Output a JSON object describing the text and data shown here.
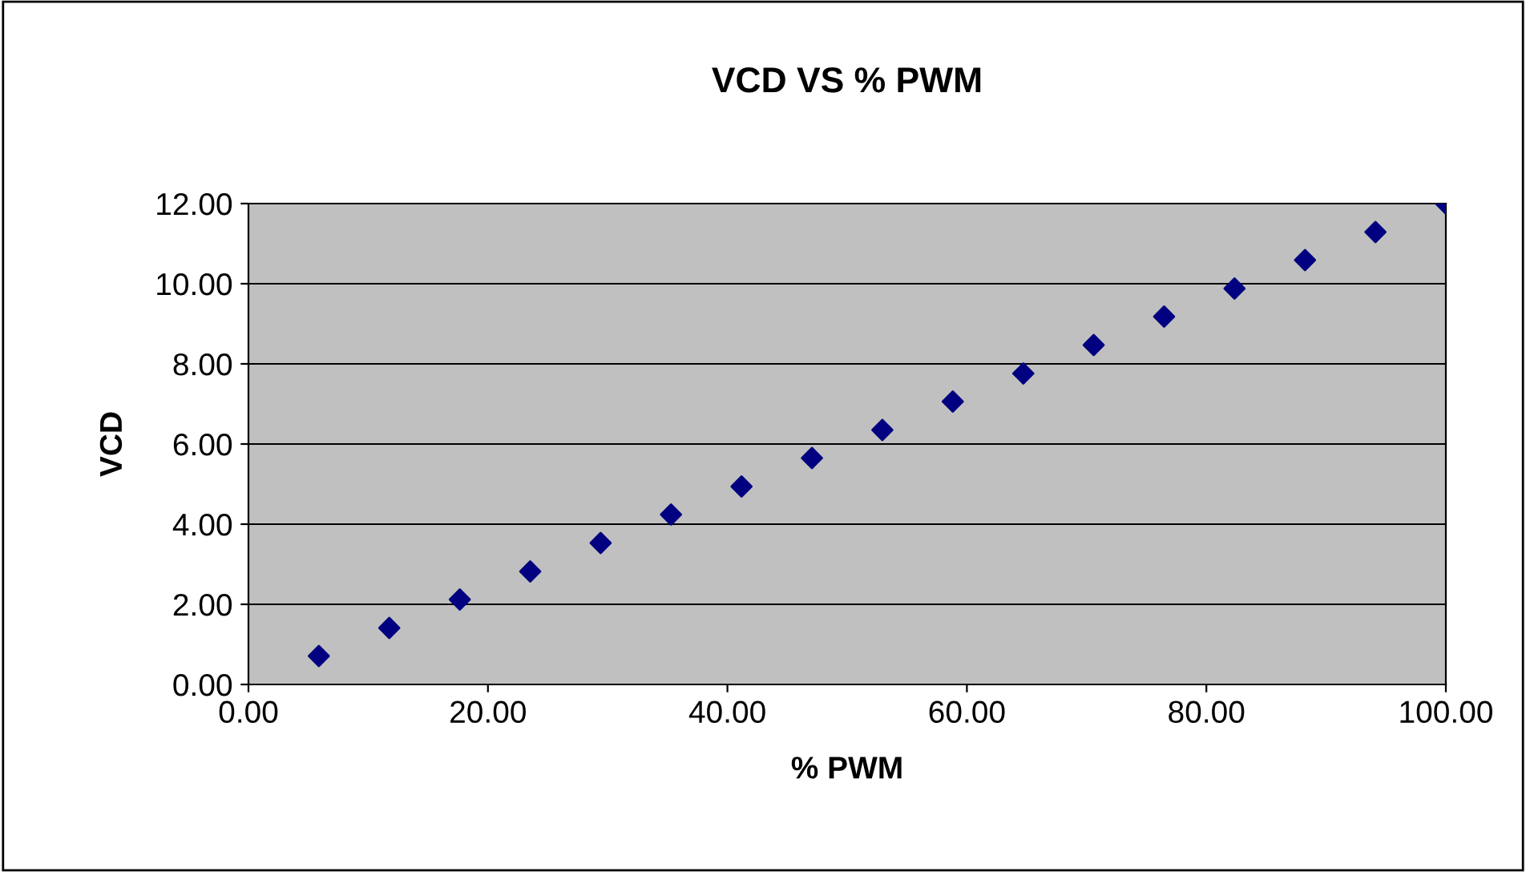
{
  "chart_data": {
    "type": "scatter",
    "title": "VCD VS % PWM",
    "xlabel": "% PWM",
    "ylabel": "VCD",
    "x": [
      5.88,
      11.76,
      17.65,
      23.53,
      29.41,
      35.29,
      41.18,
      47.06,
      52.94,
      58.82,
      64.71,
      70.59,
      76.47,
      82.35,
      88.24,
      94.12,
      100.0
    ],
    "series": [
      {
        "color": "#000080",
        "values": [
          0.71,
          1.41,
          2.12,
          2.82,
          3.53,
          4.24,
          4.94,
          5.65,
          6.35,
          7.06,
          7.76,
          8.47,
          9.18,
          9.88,
          10.59,
          11.29,
          12.0
        ]
      }
    ],
    "marker": "diamond",
    "grid": "y",
    "legend": false,
    "xlim": [
      0,
      100
    ],
    "xticks": [
      {
        "value": 0,
        "label": "0.00"
      },
      {
        "value": 20,
        "label": "20.00"
      },
      {
        "value": 40,
        "label": "40.00"
      },
      {
        "value": 60,
        "label": "60.00"
      },
      {
        "value": 80,
        "label": "80.00"
      },
      {
        "value": 100,
        "label": "100.00"
      }
    ],
    "ylim": [
      0,
      12
    ],
    "yticks": [
      {
        "value": 0,
        "label": "0.00"
      },
      {
        "value": 2,
        "label": "2.00"
      },
      {
        "value": 4,
        "label": "4.00"
      },
      {
        "value": 6,
        "label": "6.00"
      },
      {
        "value": 8,
        "label": "8.00"
      },
      {
        "value": 10,
        "label": "10.00"
      },
      {
        "value": 12,
        "label": "12.00"
      }
    ]
  }
}
